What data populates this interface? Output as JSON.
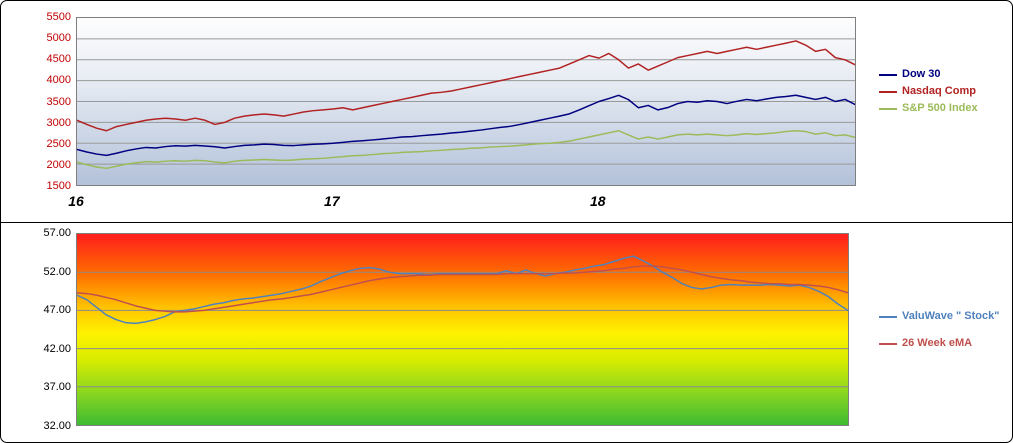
{
  "panel": {
    "background": "#FFFFFF",
    "border_color": "#000000"
  },
  "chart_data": [
    {
      "id": "index-chart",
      "type": "line",
      "title": "",
      "xlabel": "",
      "ylabel": "",
      "ylim": [
        1500,
        5500
      ],
      "grid": true,
      "grid_values": [
        2000,
        2500,
        3000,
        3500,
        4000,
        4500,
        5000
      ],
      "grid_color": "#999999",
      "tick_color": "#C00000",
      "legend_position": "right",
      "y_ticks": [
        {
          "label": "5500",
          "value": 5500
        },
        {
          "label": "5000",
          "value": 5000
        },
        {
          "label": "4500",
          "value": 4500
        },
        {
          "label": "4000",
          "value": 4000
        },
        {
          "label": "3500",
          "value": 3500
        },
        {
          "label": "3000",
          "value": 3000
        },
        {
          "label": "2500",
          "value": 2500
        },
        {
          "label": "2000",
          "value": 2000
        },
        {
          "label": "1500",
          "value": 1500
        }
      ],
      "x_labels": [
        {
          "label": "16",
          "pos": 0.0
        },
        {
          "label": "17",
          "pos": 0.328
        },
        {
          "label": "18",
          "pos": 0.669
        }
      ],
      "series": [
        {
          "name": "Dow 30",
          "color": "#000080",
          "values": [
            2350,
            2290,
            2240,
            2210,
            2260,
            2320,
            2365,
            2400,
            2385,
            2420,
            2440,
            2430,
            2450,
            2435,
            2415,
            2385,
            2420,
            2450,
            2460,
            2480,
            2470,
            2450,
            2445,
            2460,
            2475,
            2485,
            2500,
            2520,
            2545,
            2560,
            2580,
            2600,
            2625,
            2650,
            2660,
            2680,
            2700,
            2720,
            2745,
            2765,
            2790,
            2815,
            2850,
            2880,
            2905,
            2950,
            3000,
            3050,
            3100,
            3150,
            3205,
            3300,
            3400,
            3500,
            3570,
            3650,
            3545,
            3350,
            3405,
            3300,
            3355,
            3450,
            3500,
            3480,
            3520,
            3500,
            3450,
            3505,
            3550,
            3520,
            3560,
            3600,
            3620,
            3650,
            3600,
            3550,
            3600,
            3500,
            3550,
            3430
          ]
        },
        {
          "name": "Nasdaq Comp",
          "color": "#B22222",
          "values": [
            3050,
            2950,
            2860,
            2800,
            2900,
            2950,
            3000,
            3050,
            3080,
            3100,
            3080,
            3050,
            3100,
            3050,
            2950,
            3000,
            3100,
            3150,
            3180,
            3200,
            3180,
            3150,
            3200,
            3250,
            3280,
            3300,
            3320,
            3350,
            3300,
            3350,
            3400,
            3450,
            3500,
            3550,
            3600,
            3650,
            3700,
            3720,
            3750,
            3800,
            3850,
            3900,
            3950,
            4000,
            4050,
            4100,
            4150,
            4200,
            4250,
            4300,
            4400,
            4500,
            4600,
            4540,
            4650,
            4500,
            4300,
            4400,
            4250,
            4350,
            4450,
            4550,
            4600,
            4650,
            4700,
            4650,
            4700,
            4750,
            4800,
            4750,
            4800,
            4850,
            4900,
            4950,
            4850,
            4700,
            4750,
            4550,
            4500,
            4380
          ]
        },
        {
          "name": "S&P 500 Index",
          "color": "#9BBB59",
          "values": [
            2050,
            1985,
            1930,
            1900,
            1950,
            2000,
            2030,
            2060,
            2050,
            2070,
            2080,
            2070,
            2090,
            2080,
            2050,
            2030,
            2070,
            2090,
            2100,
            2110,
            2100,
            2090,
            2100,
            2120,
            2130,
            2140,
            2160,
            2180,
            2200,
            2210,
            2230,
            2250,
            2260,
            2280,
            2290,
            2300,
            2320,
            2330,
            2350,
            2360,
            2380,
            2390,
            2410,
            2420,
            2430,
            2450,
            2470,
            2490,
            2500,
            2520,
            2550,
            2600,
            2650,
            2700,
            2750,
            2800,
            2700,
            2600,
            2650,
            2600,
            2650,
            2700,
            2720,
            2700,
            2720,
            2700,
            2680,
            2700,
            2730,
            2710,
            2730,
            2750,
            2780,
            2800,
            2780,
            2720,
            2750,
            2680,
            2700,
            2640
          ]
        }
      ]
    },
    {
      "id": "valuwave-chart",
      "type": "line",
      "title": "",
      "xlabel": "",
      "ylabel": "",
      "ylim": [
        32,
        57
      ],
      "grid": true,
      "grid_values": [
        37,
        42,
        47,
        52
      ],
      "grid_color": "#8c8c8c",
      "tick_color": "#000000",
      "legend_position": "right",
      "y_ticks": [
        {
          "label": "57.00",
          "value": 57
        },
        {
          "label": "52.00",
          "value": 52
        },
        {
          "label": "47.00",
          "value": 47
        },
        {
          "label": "42.00",
          "value": 42
        },
        {
          "label": "37.00",
          "value": 37
        },
        {
          "label": "32.00",
          "value": 32
        }
      ],
      "x_labels": [],
      "series": [
        {
          "name": "ValuWave \" Stock\"",
          "color": "#4F81BD",
          "values": [
            49.0,
            48.4,
            47.4,
            46.4,
            45.8,
            45.4,
            45.3,
            45.5,
            45.8,
            46.2,
            46.8,
            47.0,
            47.2,
            47.5,
            47.8,
            48.0,
            48.3,
            48.5,
            48.6,
            48.8,
            49.0,
            49.2,
            49.5,
            49.8,
            50.2,
            50.8,
            51.3,
            51.8,
            52.2,
            52.5,
            52.6,
            52.4,
            52.0,
            51.8,
            51.8,
            51.8,
            51.7,
            51.8,
            51.8,
            51.8,
            51.8,
            51.8,
            51.8,
            51.8,
            52.2,
            51.8,
            52.3,
            51.8,
            51.5,
            51.8,
            52.0,
            52.3,
            52.5,
            52.8,
            53.0,
            53.4,
            53.8,
            54.1,
            53.5,
            52.8,
            52.0,
            51.3,
            50.5,
            50.0,
            49.8,
            50.0,
            50.3,
            50.4,
            50.3,
            50.3,
            50.3,
            50.4,
            50.3,
            50.2,
            50.3,
            50.0,
            49.5,
            48.8,
            47.8,
            47.0
          ]
        },
        {
          "name": "26 Week eMA",
          "color": "#C0504D",
          "values": [
            49.3,
            49.2,
            49.0,
            48.7,
            48.4,
            48.0,
            47.6,
            47.3,
            47.0,
            46.9,
            46.8,
            46.8,
            46.9,
            47.0,
            47.2,
            47.4,
            47.6,
            47.8,
            48.0,
            48.2,
            48.4,
            48.5,
            48.7,
            48.9,
            49.1,
            49.4,
            49.7,
            50.0,
            50.3,
            50.6,
            50.9,
            51.1,
            51.3,
            51.4,
            51.5,
            51.6,
            51.6,
            51.7,
            51.7,
            51.7,
            51.7,
            51.7,
            51.7,
            51.7,
            51.8,
            51.8,
            51.8,
            51.8,
            51.8,
            51.8,
            51.9,
            51.9,
            52.0,
            52.1,
            52.2,
            52.4,
            52.5,
            52.7,
            52.8,
            52.8,
            52.7,
            52.5,
            52.3,
            52.0,
            51.7,
            51.4,
            51.2,
            51.0,
            50.9,
            50.7,
            50.6,
            50.5,
            50.5,
            50.4,
            50.4,
            50.3,
            50.2,
            50.0,
            49.7,
            49.3
          ]
        }
      ]
    }
  ]
}
